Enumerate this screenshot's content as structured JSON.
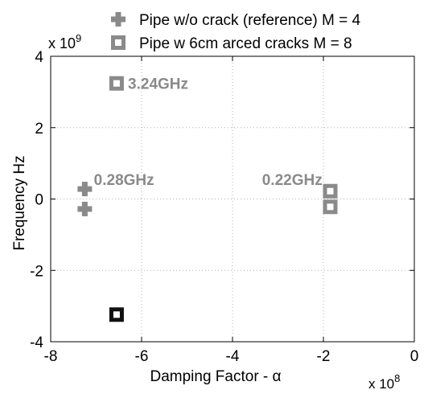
{
  "chart_data": {
    "type": "scatter",
    "title": "",
    "xlabel": "Damping Factor - α",
    "ylabel": "Frequency Hz",
    "x_exponent": "x 10",
    "x_exponent_power": "8",
    "y_exponent": "x 10",
    "y_exponent_power": "9",
    "xlim": [
      -8,
      0
    ],
    "ylim": [
      -4,
      4
    ],
    "x_ticks": [
      -8,
      -6,
      -4,
      -2,
      0
    ],
    "y_ticks": [
      -4,
      -2,
      0,
      2,
      4
    ],
    "x_tick_labels": [
      "-8",
      "-6",
      "-4",
      "-2",
      "0"
    ],
    "y_tick_labels": [
      "-4",
      "-2",
      "0",
      "2",
      "4"
    ],
    "grid": true,
    "legend_position": "top",
    "series": [
      {
        "name": "Pipe w/o crack (reference) M = 4",
        "marker": "plus",
        "color": "#8a8a8a",
        "points": [
          {
            "x": -7.25,
            "y": 0.28
          },
          {
            "x": -7.25,
            "y": -0.28
          }
        ]
      },
      {
        "name": "Pipe w 6cm arced cracks M = 8",
        "marker": "square",
        "color": "#8a8a8a",
        "points": [
          {
            "x": -6.55,
            "y": 3.24
          },
          {
            "x": -6.55,
            "y": -3.24,
            "highlight": true
          },
          {
            "x": -1.85,
            "y": 0.22
          },
          {
            "x": -1.85,
            "y": -0.22
          }
        ]
      }
    ],
    "annotations": [
      {
        "text": "3.24GHz",
        "x": -6.3,
        "y": 3.24,
        "color": "#8a8a8a"
      },
      {
        "text": "0.28GHz",
        "x": -7.05,
        "y": 0.55,
        "color": "#8a8a8a"
      },
      {
        "text": "0.22GHz",
        "x": -3.35,
        "y": 0.55,
        "color": "#8a8a8a"
      }
    ]
  }
}
